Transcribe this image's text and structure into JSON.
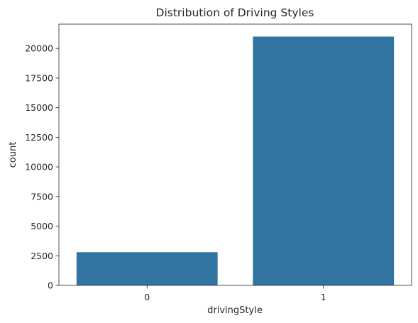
{
  "chart_data": {
    "type": "bar",
    "title": "Distribution of Driving Styles",
    "xlabel": "drivingStyle",
    "ylabel": "count",
    "categories": [
      "0",
      "1"
    ],
    "values": [
      2800,
      21000
    ],
    "ylim": [
      0,
      22050
    ],
    "yticks": [
      0,
      2500,
      5000,
      7500,
      10000,
      12500,
      15000,
      17500,
      20000
    ],
    "ytick_labels": [
      "0",
      "2500",
      "5000",
      "7500",
      "10000",
      "12500",
      "15000",
      "17500",
      "20000"
    ],
    "grid": false,
    "legend": "none",
    "bar_color": "#3274a1"
  }
}
